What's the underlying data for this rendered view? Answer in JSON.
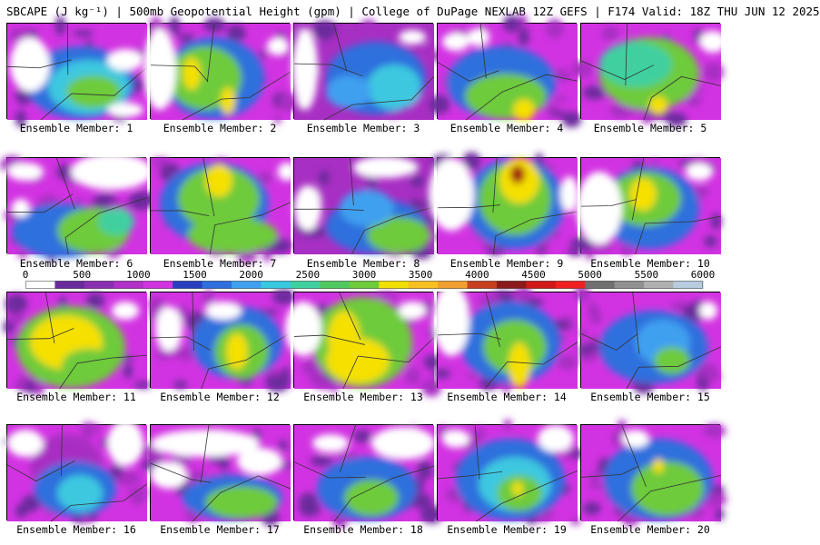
{
  "header": {
    "title": "SBCAPE (J kg⁻¹) | 500mb Geopotential Height (gpm) | College of DuPage NEXLAB 12Z GEFS | F174 Valid: 18Z THU JUN 12 2025"
  },
  "panels": [
    {
      "label": "Ensemble Member: 1"
    },
    {
      "label": "Ensemble Member: 2"
    },
    {
      "label": "Ensemble Member: 3"
    },
    {
      "label": "Ensemble Member: 4"
    },
    {
      "label": "Ensemble Member: 5"
    },
    {
      "label": "Ensemble Member: 6"
    },
    {
      "label": "Ensemble Member: 7"
    },
    {
      "label": "Ensemble Member: 8"
    },
    {
      "label": "Ensemble Member: 9"
    },
    {
      "label": "Ensemble Member: 10"
    },
    {
      "label": "Ensemble Member: 11"
    },
    {
      "label": "Ensemble Member: 12"
    },
    {
      "label": "Ensemble Member: 13"
    },
    {
      "label": "Ensemble Member: 14"
    },
    {
      "label": "Ensemble Member: 15"
    },
    {
      "label": "Ensemble Member: 16"
    },
    {
      "label": "Ensemble Member: 17"
    },
    {
      "label": "Ensemble Member: 18"
    },
    {
      "label": "Ensemble Member: 19"
    },
    {
      "label": "Ensemble Member: 20"
    }
  ],
  "colorbar": {
    "ticks": [
      "0",
      "500",
      "1000",
      "1500",
      "2000",
      "2500",
      "3000",
      "3500",
      "4000",
      "4500",
      "5000",
      "5500",
      "6000"
    ],
    "colors": [
      "#ffffff",
      "#6a2a9c",
      "#8a2fb0",
      "#b030c8",
      "#d033e0",
      "#2a3fc0",
      "#2f6fdd",
      "#3fa0f0",
      "#38c8e0",
      "#3fd0a0",
      "#50c860",
      "#6ecb3a",
      "#f0e000",
      "#f8c020",
      "#f0a030",
      "#c84020",
      "#8b1a1a",
      "#d01818",
      "#f02020",
      "#707070",
      "#909090",
      "#b0b0b0",
      "#b8cce0"
    ]
  }
}
